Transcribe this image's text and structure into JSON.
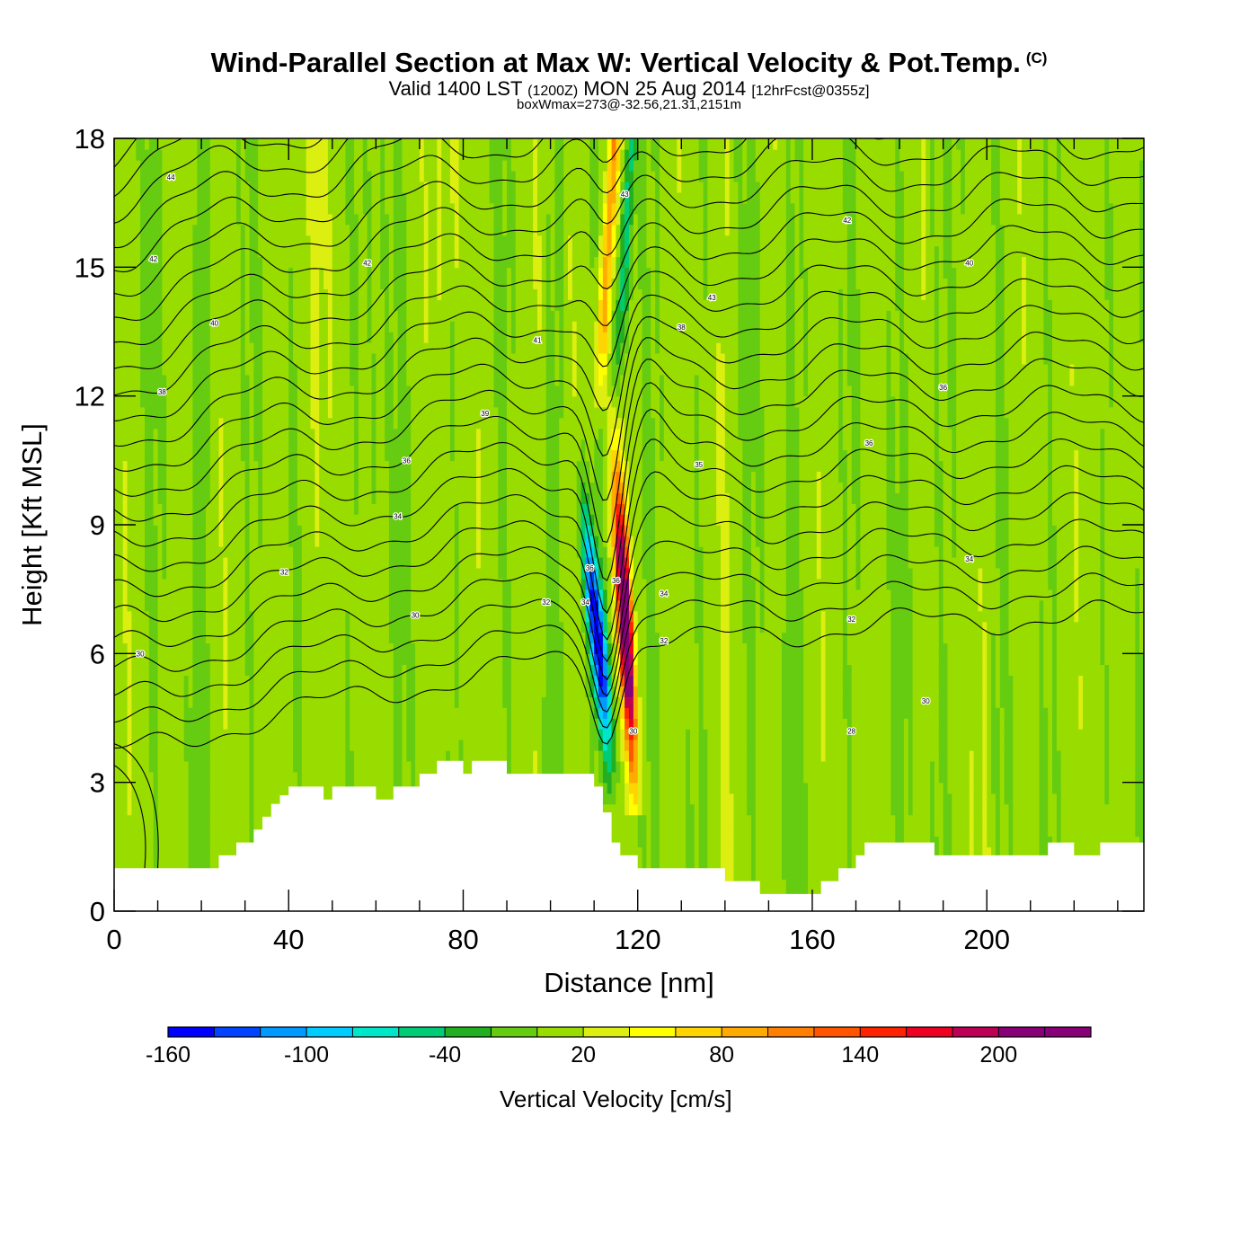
{
  "title": {
    "main": "Wind-Parallel Section at Max W: Vertical Velocity & Pot.Temp.",
    "copyright": "(C)",
    "valid_a": "Valid 1400 LST",
    "valid_b": "(1200Z)",
    "valid_c": "MON 25 Aug 2014",
    "valid_d": "[12hrFcst@0355z]",
    "box": "boxWmax=273@-32.56,21.31,2151m"
  },
  "chart_data": {
    "type": "contour-cross-section",
    "xlabel": "Distance [nm]",
    "ylabel": "Height [Kft MSL]",
    "xlim": [
      0,
      236
    ],
    "ylim": [
      0,
      18
    ],
    "x_ticks": [
      0,
      40,
      80,
      120,
      160,
      200
    ],
    "y_ticks": [
      0,
      3,
      6,
      9,
      12,
      15,
      18
    ],
    "colorbar": {
      "label": "Vertical Velocity [cm/s]",
      "levels": [
        -160,
        -140,
        -120,
        -100,
        -80,
        -60,
        -40,
        -20,
        0,
        20,
        40,
        60,
        80,
        100,
        120,
        140,
        160,
        180,
        200,
        220,
        240
      ],
      "tick_labels": [
        "-160",
        "-100",
        "-40",
        "20",
        "80",
        "140",
        "200"
      ],
      "tick_values": [
        -160,
        -100,
        -40,
        20,
        80,
        140,
        200
      ],
      "colors": [
        "#0000ff",
        "#0044ff",
        "#0099ff",
        "#00ccff",
        "#00e6c8",
        "#00cc77",
        "#22b022",
        "#66cc11",
        "#99dd00",
        "#ddee11",
        "#ffff00",
        "#ffd400",
        "#ffaa00",
        "#ff8000",
        "#ff5500",
        "#ff2200",
        "#ee0022",
        "#bb0055",
        "#880077",
        "#880077"
      ]
    },
    "updraft_max_cm_s": 273,
    "downdraft_min_cm_s": -160,
    "terrain_kft": {
      "x": [
        0,
        24,
        28,
        32,
        34,
        36,
        38,
        40,
        42,
        48,
        50,
        54,
        60,
        62,
        64,
        66,
        70,
        72,
        74,
        76,
        80,
        82,
        84,
        90,
        96,
        110,
        112,
        114,
        116,
        120,
        124,
        130,
        140,
        148,
        152,
        156,
        162,
        164,
        166,
        168,
        170,
        172,
        174,
        180,
        188,
        210,
        214,
        216,
        220,
        226,
        236
      ],
      "h": [
        1.0,
        1.3,
        1.6,
        1.9,
        2.2,
        2.5,
        2.7,
        2.9,
        2.9,
        2.6,
        2.9,
        2.9,
        2.6,
        2.6,
        2.9,
        2.9,
        3.2,
        3.2,
        3.5,
        3.5,
        3.2,
        3.5,
        3.5,
        3.2,
        3.2,
        2.9,
        2.3,
        1.6,
        1.3,
        1.0,
        1.0,
        1.0,
        0.7,
        0.4,
        0.4,
        0.4,
        0.7,
        0.7,
        1.0,
        1.0,
        1.3,
        1.6,
        1.6,
        1.6,
        1.3,
        1.3,
        1.6,
        1.6,
        1.3,
        1.6,
        1.6
      ]
    },
    "theta_levels_C": [
      28,
      29,
      30,
      31,
      32,
      33,
      34,
      35,
      36,
      37,
      38,
      39,
      40,
      41,
      42,
      43,
      44
    ],
    "contour_labels": [
      {
        "x": 13,
        "y": 17.1,
        "text": "44"
      },
      {
        "x": 117,
        "y": 16.7,
        "text": "43"
      },
      {
        "x": 168,
        "y": 16.1,
        "text": "42"
      },
      {
        "x": 9,
        "y": 15.2,
        "text": "42"
      },
      {
        "x": 58,
        "y": 15.1,
        "text": "42"
      },
      {
        "x": 196,
        "y": 15.1,
        "text": "40"
      },
      {
        "x": 137,
        "y": 14.3,
        "text": "43"
      },
      {
        "x": 23,
        "y": 13.7,
        "text": "40"
      },
      {
        "x": 130,
        "y": 13.6,
        "text": "38"
      },
      {
        "x": 97,
        "y": 13.3,
        "text": "41"
      },
      {
        "x": 190,
        "y": 12.2,
        "text": "36"
      },
      {
        "x": 11,
        "y": 12.1,
        "text": "38"
      },
      {
        "x": 85,
        "y": 11.6,
        "text": "39"
      },
      {
        "x": 173,
        "y": 10.9,
        "text": "36"
      },
      {
        "x": 67,
        "y": 10.5,
        "text": "36"
      },
      {
        "x": 134,
        "y": 10.4,
        "text": "35"
      },
      {
        "x": 65,
        "y": 9.2,
        "text": "34"
      },
      {
        "x": 196,
        "y": 8.2,
        "text": "34"
      },
      {
        "x": 109,
        "y": 8.0,
        "text": "36"
      },
      {
        "x": 115,
        "y": 7.7,
        "text": "36"
      },
      {
        "x": 39,
        "y": 7.9,
        "text": "32"
      },
      {
        "x": 126,
        "y": 7.4,
        "text": "34"
      },
      {
        "x": 99,
        "y": 7.2,
        "text": "32"
      },
      {
        "x": 108,
        "y": 7.2,
        "text": "34"
      },
      {
        "x": 69,
        "y": 6.9,
        "text": "30"
      },
      {
        "x": 169,
        "y": 6.8,
        "text": "32"
      },
      {
        "x": 126,
        "y": 6.3,
        "text": "32"
      },
      {
        "x": 6,
        "y": 6.0,
        "text": "30"
      },
      {
        "x": 186,
        "y": 4.9,
        "text": "30"
      },
      {
        "x": 169,
        "y": 4.2,
        "text": "28"
      },
      {
        "x": 119,
        "y": 4.2,
        "text": "30"
      }
    ]
  }
}
